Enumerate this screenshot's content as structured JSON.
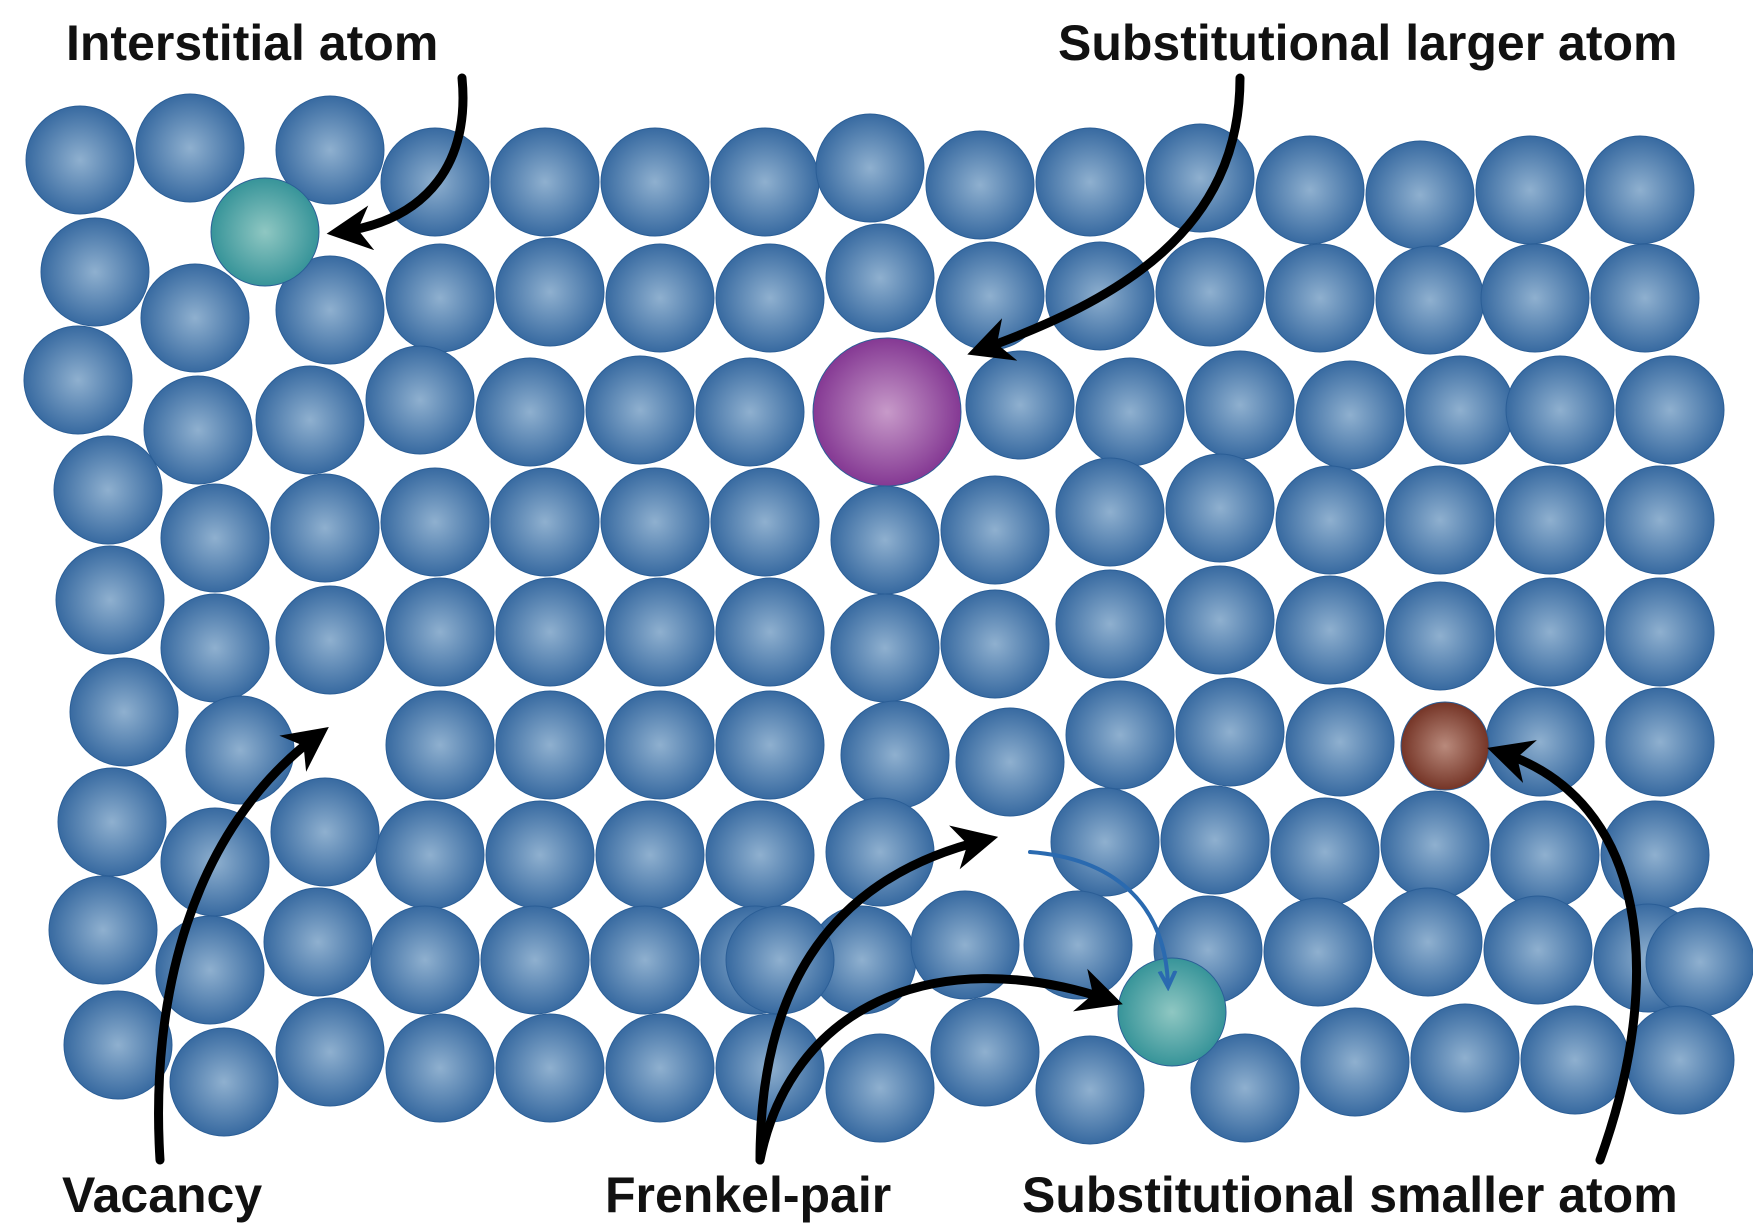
{
  "labels": {
    "interstitial": "Interstitial atom",
    "substitutional_larger": "Substitutional larger atom",
    "vacancy": "Vacancy",
    "frenkel_pair": "Frenkel-pair",
    "substitutional_smaller": "Substitutional smaller atom"
  },
  "colors": {
    "host_atom": "#3a6aa0",
    "host_atom_highlight": "#7fa4c8",
    "interstitial_atom": "#3a9a9a",
    "larger_atom": "#8a3a9a",
    "smaller_atom": "#7a3a2a",
    "arrow": "#000000",
    "jump_arrow": "#2a6ab0",
    "label_text": "#111111"
  }
}
